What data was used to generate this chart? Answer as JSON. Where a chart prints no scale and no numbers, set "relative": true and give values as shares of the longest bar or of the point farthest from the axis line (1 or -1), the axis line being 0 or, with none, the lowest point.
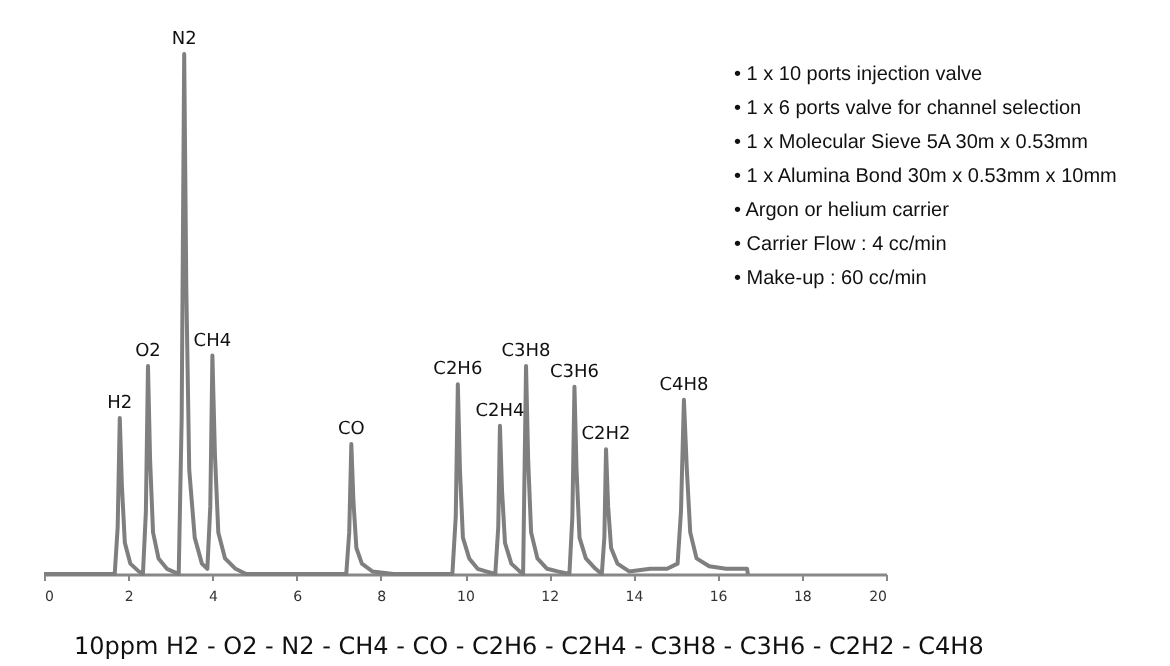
{
  "chart_data": {
    "type": "line",
    "relative": true,
    "grid": false,
    "marker": "none",
    "line_style": "solid",
    "xlim": [
      0,
      20
    ],
    "xticks": [
      0,
      2,
      4,
      6,
      8,
      10,
      12,
      14,
      16,
      18,
      20
    ],
    "x": [
      0,
      1.68,
      1.75,
      1.8,
      1.85,
      1.92,
      2.05,
      2.25,
      2.35,
      2.42,
      2.47,
      2.52,
      2.59,
      2.72,
      2.92,
      3.2,
      3.27,
      3.33,
      3.38,
      3.45,
      3.58,
      3.75,
      3.88,
      3.95,
      4.0,
      4.06,
      4.14,
      4.3,
      4.55,
      4.8,
      7.18,
      7.25,
      7.3,
      7.35,
      7.42,
      7.55,
      7.8,
      8.3,
      9.7,
      9.78,
      9.83,
      9.88,
      9.95,
      10.1,
      10.3,
      10.5,
      10.72,
      10.79,
      10.83,
      10.88,
      10.95,
      11.1,
      11.3,
      11.38,
      11.45,
      11.5,
      11.57,
      11.72,
      11.95,
      12.2,
      12.48,
      12.55,
      12.6,
      12.65,
      12.72,
      12.87,
      13.1,
      13.25,
      13.31,
      13.35,
      13.4,
      13.47,
      13.62,
      13.9,
      14.4,
      14.8,
      15.05,
      15.13,
      15.2,
      15.27,
      15.35,
      15.5,
      15.8,
      16.2,
      16.7,
      16.72
    ],
    "series": [
      {
        "color": "#7f7f7f",
        "values": [
          0,
          0,
          0.09,
          0.3,
          0.17,
          0.06,
          0.02,
          0.005,
          0,
          0.12,
          0.4,
          0.22,
          0.08,
          0.03,
          0.01,
          0,
          0.3,
          1,
          0.55,
          0.2,
          0.07,
          0.02,
          0.01,
          0.13,
          0.42,
          0.23,
          0.08,
          0.03,
          0.01,
          0,
          0,
          0.08,
          0.25,
          0.14,
          0.05,
          0.02,
          0.005,
          0,
          0,
          0.11,
          0.365,
          0.2,
          0.07,
          0.03,
          0.01,
          0.005,
          0,
          0.09,
          0.285,
          0.16,
          0.06,
          0.02,
          0.005,
          0,
          0.4,
          0.22,
          0.08,
          0.03,
          0.01,
          0.005,
          0,
          0.11,
          0.36,
          0.2,
          0.07,
          0.03,
          0.01,
          0,
          0.07,
          0.24,
          0.13,
          0.05,
          0.02,
          0.005,
          0.01,
          0.01,
          0.02,
          0.12,
          0.335,
          0.2,
          0.08,
          0.03,
          0.015,
          0.01,
          0.01,
          0
        ]
      }
    ],
    "annotations": [
      {
        "text": "H2",
        "x": 1.8,
        "y": 0.3
      },
      {
        "text": "O2",
        "x": 2.47,
        "y": 0.4
      },
      {
        "text": "N2",
        "x": 3.33,
        "y": 1
      },
      {
        "text": "CH4",
        "x": 4.0,
        "y": 0.42
      },
      {
        "text": "CO",
        "x": 7.3,
        "y": 0.25
      },
      {
        "text": "C2H6",
        "x": 9.83,
        "y": 0.365
      },
      {
        "text": "C2H4",
        "x": 10.83,
        "y": 0.285
      },
      {
        "text": "C3H8",
        "x": 11.45,
        "y": 0.4
      },
      {
        "text": "C3H6",
        "x": 12.6,
        "y": 0.36
      },
      {
        "text": "C2H2",
        "x": 13.35,
        "y": 0.24
      },
      {
        "text": "C4H8",
        "x": 15.2,
        "y": 0.335
      },
      "• 1 x 10 ports injection valve",
      "• 1 x 6 ports valve for channel selection",
      "• 1 x Molecular Sieve 5A 30m x 0.53mm",
      "• 1 x Alumina Bond 30m x 0.53mm x 10mm",
      "• Argon or helium carrier",
      "• Carrier Flow : 4 cc/min",
      "• Make-up : 60 cc/min",
      "10ppm H2 - O2 - N2 - CH4 - CO - C2H6 - C2H4 - C3H8 - C3H6 - C2H2 - C4H8"
    ]
  }
}
